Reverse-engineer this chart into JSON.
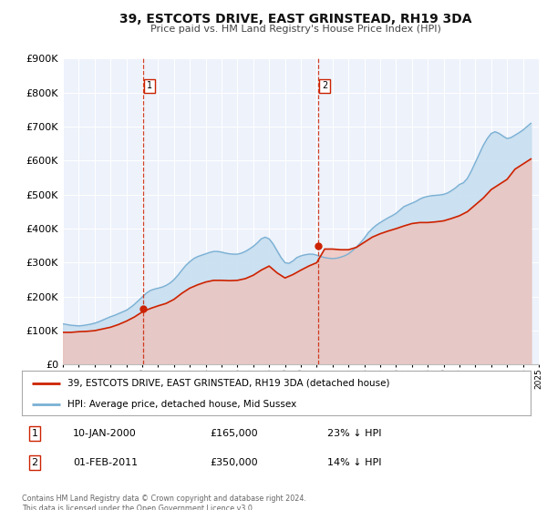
{
  "title": "39, ESTCOTS DRIVE, EAST GRINSTEAD, RH19 3DA",
  "subtitle": "Price paid vs. HM Land Registry's House Price Index (HPI)",
  "background_color": "#ffffff",
  "plot_bg_color": "#edf2fb",
  "grid_color": "#ffffff",
  "hpi_line_color": "#7ab0d4",
  "hpi_fill_color": "#c5ddef",
  "price_line_color": "#cc2200",
  "price_fill_color": "#f0c0b8",
  "marker_color": "#cc2200",
  "vline_color": "#cc2200",
  "ylim": [
    0,
    900000
  ],
  "yticks": [
    0,
    100000,
    200000,
    300000,
    400000,
    500000,
    600000,
    700000,
    800000,
    900000
  ],
  "ytick_labels": [
    "£0",
    "£100K",
    "£200K",
    "£300K",
    "£400K",
    "£500K",
    "£600K",
    "£700K",
    "£800K",
    "£900K"
  ],
  "xlim": [
    1995,
    2025
  ],
  "sale1_date": 2000.03,
  "sale1_price": 165000,
  "sale2_date": 2011.08,
  "sale2_price": 350000,
  "legend_label_price": "39, ESTCOTS DRIVE, EAST GRINSTEAD, RH19 3DA (detached house)",
  "legend_label_hpi": "HPI: Average price, detached house, Mid Sussex",
  "annotation1_label": "1",
  "annotation1_date": "10-JAN-2000",
  "annotation1_price": "£165,000",
  "annotation1_hpi": "23% ↓ HPI",
  "annotation2_label": "2",
  "annotation2_date": "01-FEB-2011",
  "annotation2_price": "£350,000",
  "annotation2_hpi": "14% ↓ HPI",
  "footer_text": "Contains HM Land Registry data © Crown copyright and database right 2024.\nThis data is licensed under the Open Government Licence v3.0.",
  "hpi_data": {
    "years": [
      1995.0,
      1995.25,
      1995.5,
      1995.75,
      1996.0,
      1996.25,
      1996.5,
      1996.75,
      1997.0,
      1997.25,
      1997.5,
      1997.75,
      1998.0,
      1998.25,
      1998.5,
      1998.75,
      1999.0,
      1999.25,
      1999.5,
      1999.75,
      2000.0,
      2000.25,
      2000.5,
      2000.75,
      2001.0,
      2001.25,
      2001.5,
      2001.75,
      2002.0,
      2002.25,
      2002.5,
      2002.75,
      2003.0,
      2003.25,
      2003.5,
      2003.75,
      2004.0,
      2004.25,
      2004.5,
      2004.75,
      2005.0,
      2005.25,
      2005.5,
      2005.75,
      2006.0,
      2006.25,
      2006.5,
      2006.75,
      2007.0,
      2007.25,
      2007.5,
      2007.75,
      2008.0,
      2008.25,
      2008.5,
      2008.75,
      2009.0,
      2009.25,
      2009.5,
      2009.75,
      2010.0,
      2010.25,
      2010.5,
      2010.75,
      2011.0,
      2011.25,
      2011.5,
      2011.75,
      2012.0,
      2012.25,
      2012.5,
      2012.75,
      2013.0,
      2013.25,
      2013.5,
      2013.75,
      2014.0,
      2014.25,
      2014.5,
      2014.75,
      2015.0,
      2015.25,
      2015.5,
      2015.75,
      2016.0,
      2016.25,
      2016.5,
      2016.75,
      2017.0,
      2017.25,
      2017.5,
      2017.75,
      2018.0,
      2018.25,
      2018.5,
      2018.75,
      2019.0,
      2019.25,
      2019.5,
      2019.75,
      2020.0,
      2020.25,
      2020.5,
      2020.75,
      2021.0,
      2021.25,
      2021.5,
      2021.75,
      2022.0,
      2022.25,
      2022.5,
      2022.75,
      2023.0,
      2023.25,
      2023.5,
      2023.75,
      2024.0,
      2024.25,
      2024.5
    ],
    "values": [
      120000,
      118000,
      116000,
      115000,
      114000,
      115000,
      117000,
      119000,
      122000,
      126000,
      131000,
      136000,
      141000,
      145000,
      150000,
      155000,
      160000,
      168000,
      177000,
      188000,
      199000,
      210000,
      218000,
      222000,
      225000,
      228000,
      233000,
      240000,
      250000,
      263000,
      278000,
      292000,
      303000,
      312000,
      318000,
      322000,
      326000,
      330000,
      333000,
      333000,
      331000,
      328000,
      326000,
      325000,
      325000,
      328000,
      333000,
      340000,
      348000,
      358000,
      370000,
      375000,
      370000,
      355000,
      335000,
      315000,
      300000,
      298000,
      305000,
      315000,
      320000,
      323000,
      325000,
      325000,
      322000,
      318000,
      315000,
      313000,
      312000,
      313000,
      316000,
      320000,
      326000,
      335000,
      346000,
      358000,
      372000,
      388000,
      400000,
      410000,
      418000,
      425000,
      432000,
      438000,
      445000,
      455000,
      465000,
      470000,
      475000,
      480000,
      487000,
      492000,
      495000,
      497000,
      498000,
      499000,
      501000,
      505000,
      512000,
      520000,
      530000,
      535000,
      548000,
      570000,
      595000,
      620000,
      645000,
      665000,
      680000,
      685000,
      680000,
      672000,
      665000,
      668000,
      675000,
      682000,
      690000,
      700000,
      710000
    ]
  },
  "price_data": {
    "years": [
      1995.0,
      1995.5,
      1996.0,
      1996.5,
      1997.0,
      1997.5,
      1998.0,
      1998.5,
      1999.0,
      1999.5,
      2000.0,
      2000.5,
      2001.0,
      2001.5,
      2002.0,
      2002.5,
      2003.0,
      2003.5,
      2004.0,
      2004.5,
      2005.0,
      2005.5,
      2006.0,
      2006.5,
      2007.0,
      2007.5,
      2008.0,
      2008.5,
      2009.0,
      2009.5,
      2010.0,
      2010.5,
      2011.0,
      2011.5,
      2012.0,
      2012.5,
      2013.0,
      2013.5,
      2014.0,
      2014.5,
      2015.0,
      2015.5,
      2016.0,
      2016.5,
      2017.0,
      2017.5,
      2018.0,
      2018.5,
      2019.0,
      2019.5,
      2020.0,
      2020.5,
      2021.0,
      2021.5,
      2022.0,
      2022.5,
      2023.0,
      2023.5,
      2024.0,
      2024.5
    ],
    "values": [
      95000,
      95000,
      97000,
      98000,
      100000,
      105000,
      110000,
      118000,
      128000,
      140000,
      155000,
      165000,
      173000,
      180000,
      192000,
      210000,
      225000,
      235000,
      243000,
      248000,
      248000,
      247000,
      248000,
      253000,
      263000,
      278000,
      290000,
      270000,
      255000,
      265000,
      278000,
      290000,
      300000,
      340000,
      340000,
      338000,
      338000,
      345000,
      360000,
      375000,
      385000,
      393000,
      400000,
      408000,
      415000,
      418000,
      418000,
      420000,
      423000,
      430000,
      438000,
      450000,
      470000,
      490000,
      515000,
      530000,
      545000,
      575000,
      590000,
      605000
    ]
  }
}
